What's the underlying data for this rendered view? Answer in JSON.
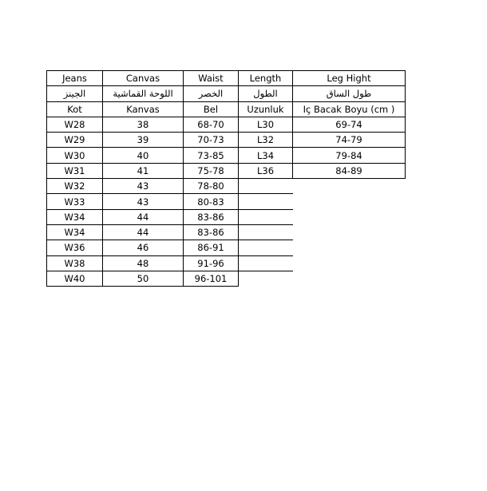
{
  "table": {
    "headers_en": [
      "Jeans",
      "Canvas",
      "Waist",
      "Length",
      "Leg Hight"
    ],
    "headers_ar": [
      "الجينز",
      "اللوحة القماشية",
      "الخصر",
      "الطول",
      "طول الساق"
    ],
    "headers_tr": [
      "Kot",
      "Kanvas",
      "Bel",
      "Uzunluk",
      "Iç Bacak Boyu (cm )"
    ],
    "rows": [
      [
        "W28",
        "38",
        "68-70",
        "L30",
        "69-74"
      ],
      [
        "W29",
        "39",
        "70-73",
        "L32",
        "74-79"
      ],
      [
        "W30",
        "40",
        "73-85",
        "L34",
        "79-84"
      ],
      [
        "W31",
        "41",
        "75-78",
        "L36",
        "84-89"
      ],
      [
        "W32",
        "43",
        "78-80"
      ],
      [
        "W33",
        "43",
        "80-83"
      ],
      [
        "W34",
        "44",
        "83-86"
      ],
      [
        "W34",
        "44",
        "83-86"
      ],
      [
        "W36",
        "46",
        "86-91"
      ],
      [
        "W38",
        "48",
        "91-96"
      ],
      [
        "W40",
        "50",
        "96-101"
      ]
    ]
  }
}
